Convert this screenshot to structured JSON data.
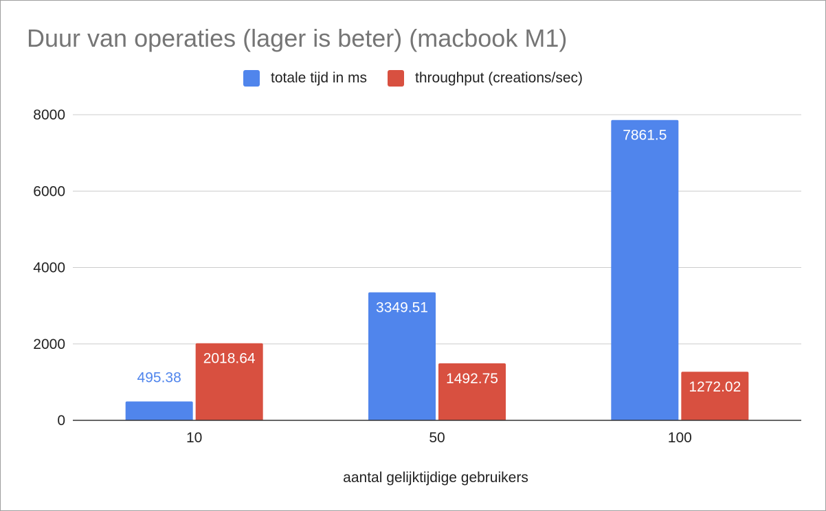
{
  "chart_data": {
    "type": "bar",
    "title": "Duur van operaties (lager is beter) (macbook M1)",
    "xlabel": "aantal gelijktijdige gebruikers",
    "ylabel": "",
    "categories": [
      "10",
      "50",
      "100"
    ],
    "ylim": [
      0,
      8000
    ],
    "yticks": [
      0,
      2000,
      4000,
      6000,
      8000
    ],
    "grid": true,
    "legend_position": "top",
    "series": [
      {
        "name": "totale tijd in ms",
        "color": "#5085ec",
        "values": [
          495.38,
          3349.51,
          7861.5
        ],
        "labels": [
          "495.38",
          "3349.51",
          "7861.5"
        ]
      },
      {
        "name": "throughput (creations/sec)",
        "color": "#d85040",
        "values": [
          2018.64,
          1492.75,
          1272.02
        ],
        "labels": [
          "2018.64",
          "1492.75",
          "1272.02"
        ]
      }
    ]
  }
}
